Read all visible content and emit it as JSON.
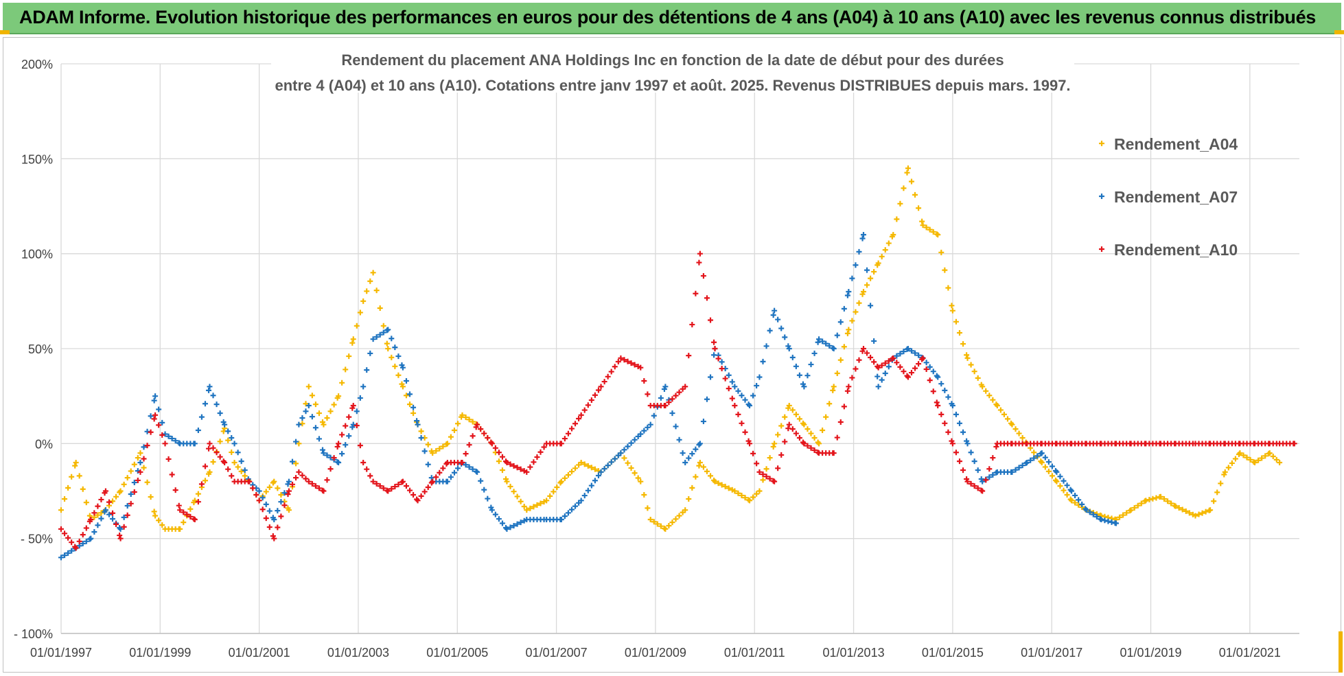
{
  "header": {
    "title": "ADAM Informe. Evolution historique des performances en euros pour des détentions de 4 ans (A04) à 10 ans (A10) avec les revenus connus distribués"
  },
  "colors": {
    "banner_bg": "#7cc97a",
    "A04": "#f5b800",
    "A07": "#1f74c0",
    "A10": "#e3141b",
    "grid": "#d9d9d9"
  },
  "chart_data": {
    "type": "scatter",
    "title_line1": "Rendement du placement ANA Holdings Inc en fonction de la date de début pour des durées",
    "title_line2": "entre 4 (A04) et 10 ans (A10). Cotations entre janv 1997 et août. 2025. Revenus DISTRIBUES depuis mars. 1997.",
    "marker": "+",
    "x_unit": "year",
    "xlim": [
      1997.0,
      2022.0
    ],
    "ylim": [
      -100,
      200
    ],
    "y_ticks": [
      "- 100%",
      "- 50%",
      "0%",
      "50%",
      "100%",
      "150%",
      "200%"
    ],
    "y_tick_values": [
      -100,
      -50,
      0,
      50,
      100,
      150,
      200
    ],
    "x_ticks": [
      "01/01/1997",
      "01/01/1999",
      "01/01/2001",
      "01/01/2003",
      "01/01/2005",
      "01/01/2007",
      "01/01/2009",
      "01/01/2011",
      "01/01/2013",
      "01/01/2015",
      "01/01/2017",
      "01/01/2019",
      "01/01/2021"
    ],
    "x_tick_values": [
      1997,
      1999,
      2001,
      2003,
      2005,
      2007,
      2009,
      2011,
      2013,
      2015,
      2017,
      2019,
      2021
    ],
    "grid": true,
    "legend_position": "top-right",
    "series": [
      {
        "name": "Rendement_A04",
        "color": "#f5b800",
        "x": [
          1997.0,
          1997.3,
          1997.6,
          1997.9,
          1998.2,
          1998.6,
          1998.9,
          1999.1,
          1999.4,
          1999.7,
          2000.0,
          2000.3,
          2000.5,
          2000.8,
          2001.0,
          2001.3,
          2001.6,
          2001.8,
          2002.0,
          2002.3,
          2002.6,
          2002.9,
          2003.1,
          2003.3,
          2003.6,
          2003.9,
          2004.2,
          2004.5,
          2004.8,
          2005.1,
          2005.4,
          2005.7,
          2006.0,
          2006.4,
          2006.8,
          2007.1,
          2007.5,
          2007.9,
          2008.3,
          2008.7,
          2008.9,
          2009.2,
          2009.6,
          2009.9,
          2010.2,
          2010.6,
          2010.9,
          2011.1,
          2011.4,
          2011.7,
          2012.0,
          2012.3,
          2012.6,
          2012.9,
          2013.2,
          2013.5,
          2013.8,
          2014.1,
          2014.4,
          2014.7,
          2015.0,
          2015.3,
          2015.6,
          2015.9,
          2016.2,
          2016.5,
          2016.8,
          2017.1,
          2017.4,
          2017.7,
          2018.0,
          2018.3,
          2018.6,
          2018.9,
          2019.2,
          2019.5,
          2019.9,
          2020.2,
          2020.5,
          2020.8,
          2021.1,
          2021.4,
          2021.6
        ],
        "y": [
          -35,
          -10,
          -40,
          -35,
          -25,
          -5,
          -38,
          -45,
          -45,
          -30,
          -15,
          8,
          -10,
          -20,
          -30,
          -20,
          -35,
          0,
          30,
          10,
          25,
          55,
          75,
          90,
          50,
          30,
          10,
          -5,
          0,
          15,
          10,
          0,
          -20,
          -35,
          -30,
          -20,
          -10,
          -15,
          -5,
          -20,
          -40,
          -45,
          -35,
          -10,
          -20,
          -25,
          -30,
          -25,
          0,
          20,
          10,
          0,
          30,
          60,
          80,
          95,
          110,
          145,
          115,
          110,
          70,
          45,
          30,
          20,
          10,
          0,
          -10,
          -20,
          -30,
          -35,
          -38,
          -40,
          -35,
          -30,
          -28,
          -33,
          -38,
          -35,
          -15,
          -5,
          -10,
          -5,
          -10
        ]
      },
      {
        "name": "Rendement_A07",
        "color": "#1f74c0",
        "x": [
          1997.0,
          1997.3,
          1997.6,
          1997.9,
          1998.2,
          1998.6,
          1998.9,
          1999.1,
          1999.4,
          1999.7,
          2000.0,
          2000.3,
          2000.5,
          2000.8,
          2001.0,
          2001.3,
          2001.6,
          2001.8,
          2002.0,
          2002.3,
          2002.6,
          2002.9,
          2003.1,
          2003.3,
          2003.6,
          2003.9,
          2004.2,
          2004.5,
          2004.8,
          2005.1,
          2005.4,
          2005.7,
          2006.0,
          2006.4,
          2006.8,
          2007.1,
          2007.5,
          2007.9,
          2008.3,
          2008.7,
          2008.9,
          2009.2,
          2009.6,
          2009.9,
          2010.2,
          2010.6,
          2010.9,
          2011.1,
          2011.4,
          2011.7,
          2012.0,
          2012.3,
          2012.6,
          2012.9,
          2013.2,
          2013.5,
          2013.8,
          2014.1,
          2014.4,
          2014.7,
          2015.0,
          2015.3,
          2015.6,
          2015.9,
          2016.2,
          2016.5,
          2016.8,
          2017.1,
          2017.4,
          2017.7,
          2018.0,
          2018.3
        ],
        "y": [
          -60,
          -55,
          -50,
          -35,
          -45,
          -10,
          25,
          5,
          0,
          0,
          30,
          10,
          0,
          -20,
          -25,
          -40,
          -20,
          10,
          20,
          -5,
          -10,
          10,
          30,
          55,
          60,
          40,
          10,
          -20,
          -20,
          -10,
          -15,
          -35,
          -45,
          -40,
          -40,
          -40,
          -30,
          -15,
          -5,
          5,
          10,
          30,
          -10,
          0,
          50,
          30,
          20,
          35,
          70,
          50,
          30,
          55,
          50,
          80,
          110,
          30,
          45,
          50,
          45,
          35,
          20,
          0,
          -20,
          -15,
          -15,
          -10,
          -5,
          -15,
          -25,
          -35,
          -40,
          -42
        ]
      },
      {
        "name": "Rendement_A10",
        "color": "#e3141b",
        "x": [
          1997.0,
          1997.3,
          1997.6,
          1997.9,
          1998.2,
          1998.6,
          1998.9,
          1999.1,
          1999.4,
          1999.7,
          2000.0,
          2000.3,
          2000.5,
          2000.8,
          2001.0,
          2001.3,
          2001.6,
          2001.8,
          2002.0,
          2002.3,
          2002.6,
          2002.9,
          2003.1,
          2003.3,
          2003.6,
          2003.9,
          2004.2,
          2004.5,
          2004.8,
          2005.1,
          2005.4,
          2005.7,
          2006.0,
          2006.4,
          2006.8,
          2007.1,
          2007.5,
          2007.9,
          2008.3,
          2008.7,
          2008.9,
          2009.2,
          2009.6,
          2009.9,
          2010.2,
          2010.6,
          2010.9,
          2011.1,
          2011.4,
          2011.7,
          2012.0,
          2012.3,
          2012.6,
          2012.9,
          2013.2,
          2013.5,
          2013.8,
          2014.1,
          2014.4,
          2014.7,
          2015.0,
          2015.3,
          2015.6,
          2015.9,
          2016.2,
          2016.5,
          2016.8,
          2017.1,
          2017.4,
          2017.7,
          2018.0,
          2018.3,
          2018.6,
          2018.9,
          2019.2,
          2019.5,
          2019.9,
          2020.2,
          2020.5,
          2020.8,
          2021.1,
          2021.4,
          2021.6,
          2021.9
        ],
        "y": [
          -45,
          -55,
          -40,
          -25,
          -50,
          -15,
          15,
          0,
          -35,
          -40,
          0,
          -10,
          -20,
          -20,
          -30,
          -50,
          -25,
          -15,
          -20,
          -25,
          0,
          20,
          -10,
          -20,
          -25,
          -20,
          -30,
          -20,
          -10,
          -10,
          10,
          0,
          -10,
          -15,
          0,
          0,
          15,
          30,
          45,
          40,
          20,
          20,
          30,
          100,
          50,
          20,
          0,
          -15,
          -20,
          10,
          0,
          -5,
          -5,
          30,
          50,
          40,
          45,
          35,
          45,
          20,
          0,
          -20,
          -25,
          0,
          0,
          0,
          0,
          0,
          0,
          0,
          0,
          0,
          0,
          0,
          0,
          0,
          0,
          0,
          0,
          0,
          0,
          0,
          0,
          0
        ]
      }
    ]
  }
}
